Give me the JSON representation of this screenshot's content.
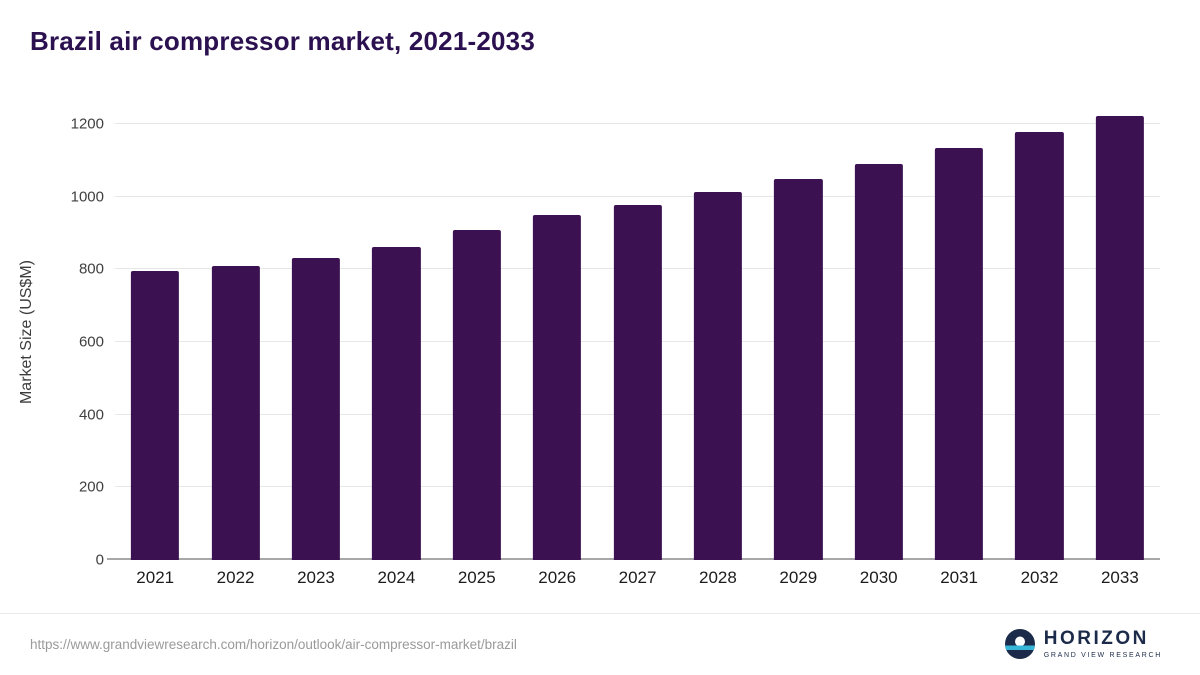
{
  "chart_data": {
    "type": "bar",
    "title": "Brazil air compressor market, 2021-2033",
    "xlabel": "",
    "ylabel": "Market Size (US$M)",
    "categories": [
      "2021",
      "2022",
      "2023",
      "2024",
      "2025",
      "2026",
      "2027",
      "2028",
      "2029",
      "2030",
      "2031",
      "2032",
      "2033"
    ],
    "values": [
      795,
      810,
      830,
      862,
      908,
      948,
      978,
      1012,
      1048,
      1090,
      1133,
      1178,
      1222
    ],
    "yticks": [
      0,
      200,
      400,
      600,
      800,
      1000,
      1200
    ],
    "ylim": [
      0,
      1252
    ],
    "grid": true,
    "legend": "none",
    "bar_color": "#3b1152"
  },
  "colors": {
    "title": "#2b1150",
    "bar": "#3b1152",
    "gridline": "#e7e7e7",
    "axis_text": "#3f3f3f",
    "logo_navy": "#1c2b49",
    "logo_teal": "#38b6d8"
  },
  "footer": {
    "source_url": "https://www.grandviewresearch.com/horizon/outlook/air-compressor-market/brazil",
    "logo_name": "HORIZON",
    "logo_subtitle": "GRAND VIEW RESEARCH"
  }
}
